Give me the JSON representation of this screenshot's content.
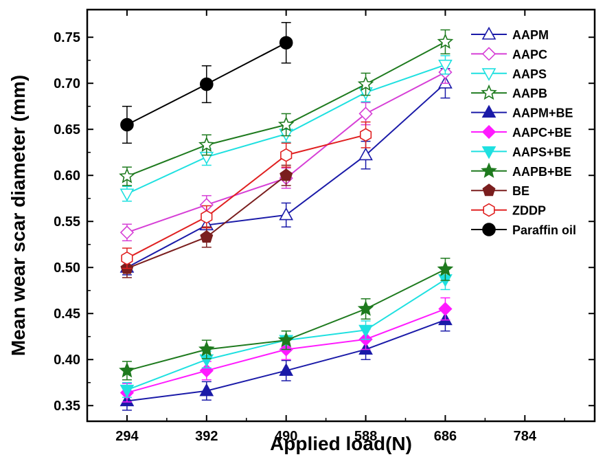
{
  "chart_data": {
    "type": "line",
    "xlabel": "Applied load(N)",
    "ylabel": "Mean wear scar diameter (mm)",
    "xticks": [
      "294",
      "392",
      "490",
      "588",
      "686",
      "784"
    ],
    "yticks": [
      "0.35",
      "0.40",
      "0.45",
      "0.50",
      "0.55",
      "0.60",
      "0.65",
      "0.70",
      "0.75"
    ],
    "xlim": [
      245,
      870
    ],
    "ylim": [
      0.333,
      0.78
    ],
    "grid": false,
    "legend_position": "top-right",
    "series": [
      {
        "name": "AAPM",
        "color": "#1a1aa8",
        "marker": "triangle-up",
        "filled": false,
        "x": [
          294,
          392,
          490,
          588,
          686
        ],
        "y": [
          0.5,
          0.546,
          0.557,
          0.622,
          0.7
        ],
        "err": [
          0.008,
          0.01,
          0.013,
          0.015,
          0.016
        ]
      },
      {
        "name": "AAPC",
        "color": "#d63fd6",
        "marker": "diamond",
        "filled": false,
        "x": [
          294,
          392,
          490,
          588,
          686
        ],
        "y": [
          0.538,
          0.568,
          0.597,
          0.667,
          0.712
        ],
        "err": [
          0.009,
          0.01,
          0.011,
          0.012,
          0.012
        ]
      },
      {
        "name": "AAPS",
        "color": "#1ee0e0",
        "marker": "triangle-down",
        "filled": false,
        "x": [
          294,
          392,
          490,
          588,
          686
        ],
        "y": [
          0.58,
          0.62,
          0.645,
          0.69,
          0.72
        ],
        "err": [
          0.008,
          0.009,
          0.009,
          0.01,
          0.01
        ]
      },
      {
        "name": "AAPB",
        "color": "#1e7a1e",
        "marker": "star",
        "filled": false,
        "x": [
          294,
          392,
          490,
          588,
          686
        ],
        "y": [
          0.599,
          0.633,
          0.655,
          0.699,
          0.745
        ],
        "err": [
          0.01,
          0.011,
          0.012,
          0.012,
          0.013
        ]
      },
      {
        "name": "AAPM+BE",
        "color": "#1a1aa8",
        "marker": "triangle-up",
        "filled": true,
        "x": [
          294,
          392,
          490,
          588,
          686
        ],
        "y": [
          0.355,
          0.366,
          0.388,
          0.411,
          0.443
        ],
        "err": [
          0.01,
          0.01,
          0.011,
          0.011,
          0.012
        ]
      },
      {
        "name": "AAPC+BE",
        "color": "#ff1aff",
        "marker": "diamond",
        "filled": true,
        "x": [
          294,
          392,
          490,
          588,
          686
        ],
        "y": [
          0.364,
          0.388,
          0.411,
          0.422,
          0.455
        ],
        "err": [
          0.01,
          0.01,
          0.011,
          0.011,
          0.012
        ]
      },
      {
        "name": "AAPS+BE",
        "color": "#1ee0e0",
        "marker": "triangle-down",
        "filled": true,
        "x": [
          294,
          392,
          490,
          588,
          686
        ],
        "y": [
          0.367,
          0.4,
          0.421,
          0.432,
          0.487
        ],
        "err": [
          0.008,
          0.009,
          0.01,
          0.01,
          0.011
        ]
      },
      {
        "name": "AAPB+BE",
        "color": "#1e7a1e",
        "marker": "star",
        "filled": true,
        "x": [
          294,
          392,
          490,
          588,
          686
        ],
        "y": [
          0.388,
          0.411,
          0.421,
          0.455,
          0.498
        ],
        "err": [
          0.01,
          0.01,
          0.01,
          0.011,
          0.012
        ]
      },
      {
        "name": "BE",
        "color": "#7a1e1e",
        "marker": "pentagon",
        "filled": true,
        "x": [
          294,
          392,
          490
        ],
        "y": [
          0.499,
          0.533,
          0.6
        ],
        "err": [
          0.01,
          0.011,
          0.011
        ]
      },
      {
        "name": "ZDDP",
        "color": "#e02020",
        "marker": "hexagon",
        "filled": false,
        "x": [
          294,
          392,
          490,
          588
        ],
        "y": [
          0.51,
          0.555,
          0.622,
          0.644
        ],
        "err": [
          0.011,
          0.012,
          0.013,
          0.014
        ]
      },
      {
        "name": "Paraffin oil",
        "color": "#000000",
        "marker": "circle",
        "filled": true,
        "x": [
          294,
          392,
          490
        ],
        "y": [
          0.655,
          0.699,
          0.744
        ],
        "err": [
          0.02,
          0.02,
          0.022
        ]
      }
    ]
  }
}
